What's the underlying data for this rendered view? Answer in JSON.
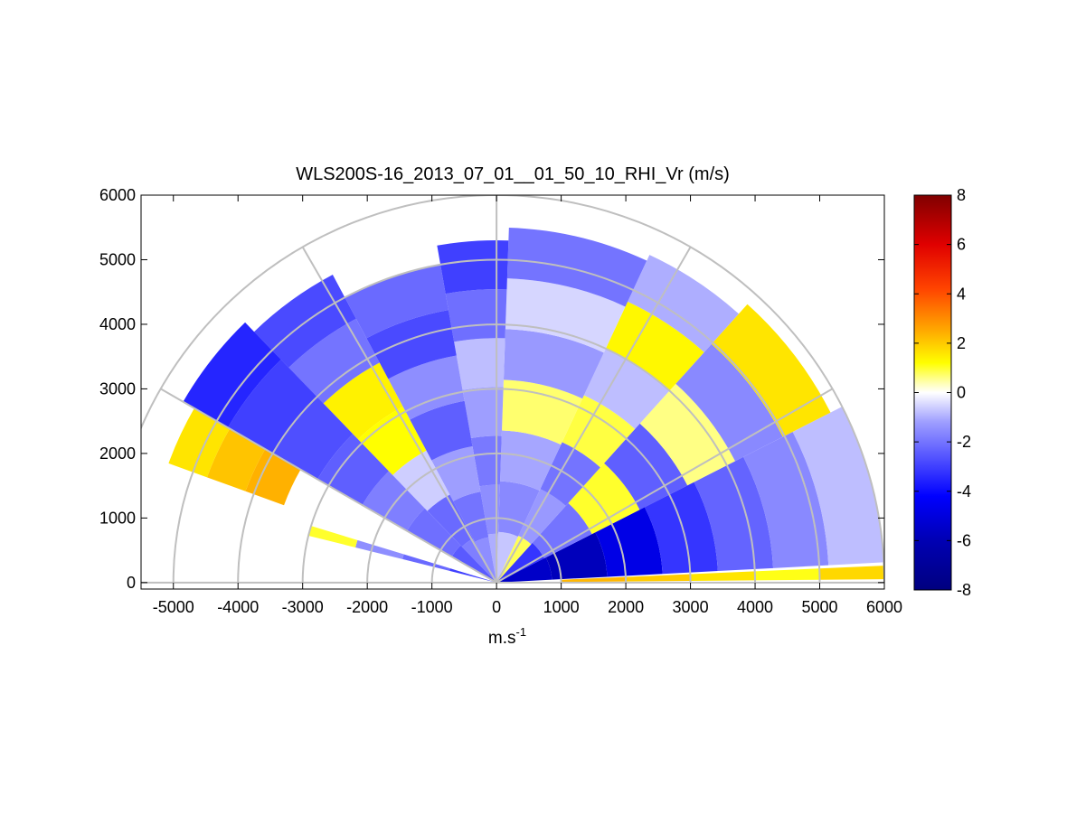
{
  "chart_data": {
    "type": "heatmap",
    "subtype": "polar-rhi-sector",
    "title": "WLS200S-16_2013_07_01__01_50_10_RHI_Vr (m/s)",
    "xlabel_base": "m.s",
    "xlabel_sup": "-1",
    "ylabel": "",
    "xlim": [
      -5500,
      6000
    ],
    "ylim": [
      -100,
      6000
    ],
    "xticks": [
      -5000,
      -4000,
      -3000,
      -2000,
      -1000,
      0,
      1000,
      2000,
      3000,
      4000,
      5000,
      6000
    ],
    "yticks": [
      0,
      1000,
      2000,
      3000,
      4000,
      5000,
      6000
    ],
    "grid": true,
    "range_rings": [
      1000,
      2000,
      3000,
      4000,
      5000,
      6000
    ],
    "radial_angles_deg": [
      0,
      30,
      60,
      90,
      120,
      150,
      180
    ],
    "colorbar": {
      "limits": [
        -8,
        8
      ],
      "ticks": [
        -8,
        -6,
        -4,
        -2,
        0,
        2,
        4,
        6,
        8
      ],
      "placement": "right",
      "colormap": [
        [
          -8,
          "#00007f"
        ],
        [
          -6,
          "#0000b3"
        ],
        [
          -4.2,
          "#0000ff"
        ],
        [
          -2.5,
          "#5a5aff"
        ],
        [
          -1.2,
          "#9e9eff"
        ],
        [
          -0.4,
          "#dedeff"
        ],
        [
          0,
          "#ffffff"
        ],
        [
          0.4,
          "#ffffb0"
        ],
        [
          1.2,
          "#ffff00"
        ],
        [
          2.5,
          "#ffaa00"
        ],
        [
          4.2,
          "#ff4400"
        ],
        [
          6,
          "#e00000"
        ],
        [
          8,
          "#800000"
        ]
      ]
    },
    "sectors": [
      {
        "angle_start": 3,
        "angle_end": 27,
        "range_start": 0,
        "range_end": 6000,
        "values": [
          -5.5,
          -5.8,
          -4.8,
          -3.2,
          -2.3,
          -1.6,
          -0.8
        ]
      },
      {
        "angle_start": 27,
        "angle_end": 48,
        "range_start": 0,
        "range_end": 5800,
        "values": [
          -3.2,
          -2.0,
          1.0,
          -2.4,
          0.6,
          -1.6,
          1.6
        ]
      },
      {
        "angle_start": 48,
        "angle_end": 65,
        "range_start": 0,
        "range_end": 5600,
        "values": [
          0.8,
          -1.3,
          -2.0,
          0.9,
          -0.8,
          1.3,
          -1.0
        ]
      },
      {
        "angle_start": 65,
        "angle_end": 88,
        "range_start": 0,
        "range_end": 5500,
        "values": [
          -0.7,
          -1.6,
          -1.1,
          0.7,
          -1.3,
          -0.5,
          -2.0
        ]
      },
      {
        "angle_start": 88,
        "angle_end": 100,
        "range_start": 0,
        "range_end": 5300,
        "values": [
          -1.0,
          -1.5,
          -1.9,
          -1.2,
          -0.8,
          -2.1,
          -3.0
        ]
      },
      {
        "angle_start": 100,
        "angle_end": 118,
        "range_start": 0,
        "range_end": 5000,
        "values": [
          -1.5,
          -2.0,
          -1.2,
          -2.4,
          -1.5,
          -2.8,
          -2.2
        ]
      },
      {
        "angle_start": 118,
        "angle_end": 134,
        "range_start": 0,
        "range_end": 5400,
        "values": [
          -1.8,
          -2.2,
          -0.6,
          1.2,
          1.4,
          -2.0,
          -2.8
        ]
      },
      {
        "angle_start": 134,
        "angle_end": 150,
        "range_start": 0,
        "range_end": 5600,
        "values": [
          -2.5,
          -2.1,
          -1.8,
          -2.4,
          -2.7,
          -3.0,
          -3.5
        ]
      },
      {
        "angle_start": 150,
        "angle_end": 160,
        "range_start": 3500,
        "range_end": 5400,
        "values": [
          2.4,
          2.1,
          1.6
        ]
      },
      {
        "angle_start": 163,
        "angle_end": 166,
        "range_start": 0,
        "range_end": 3000,
        "values": [
          -3.0,
          -2.2,
          -1.5,
          1.0
        ]
      },
      {
        "angle_start": 0.5,
        "angle_end": 2.5,
        "range_start": 1000,
        "range_end": 6000,
        "values": [
          2.3,
          2.0,
          1.6,
          1.1,
          1.8
        ]
      }
    ]
  }
}
